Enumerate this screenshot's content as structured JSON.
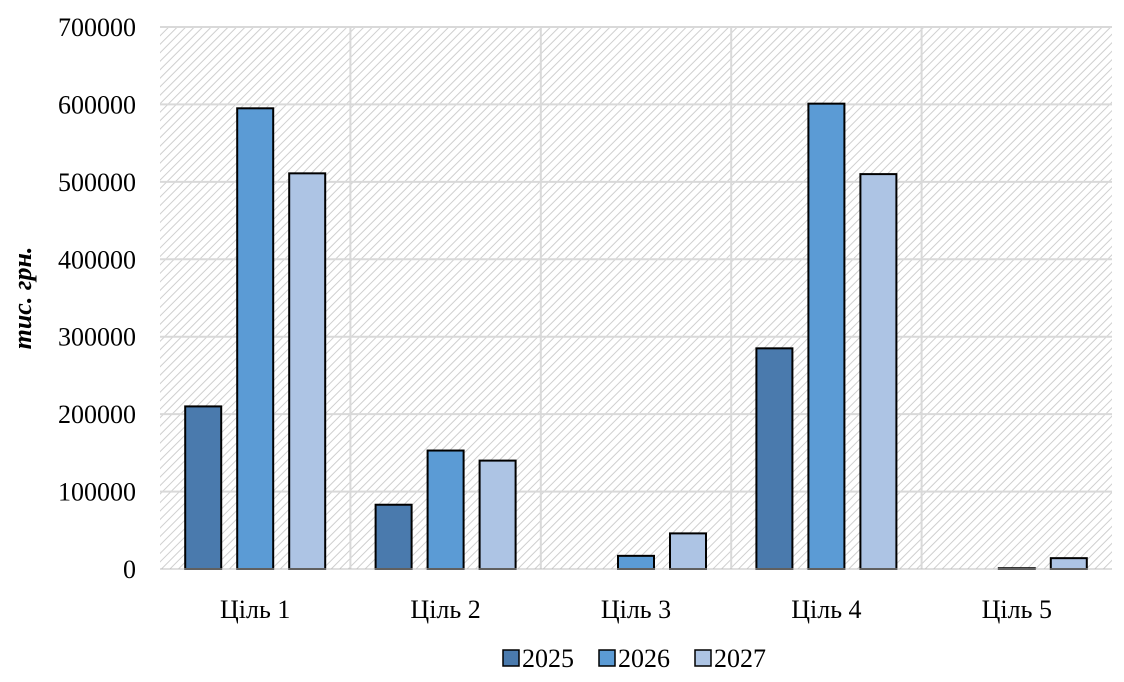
{
  "chart_data": {
    "type": "bar",
    "title": "",
    "xlabel": "",
    "ylabel": "тис. грн.",
    "categories": [
      "Ціль 1",
      "Ціль 2",
      "Ціль 3",
      "Ціль 4",
      "Ціль 5"
    ],
    "series": [
      {
        "name": "2025",
        "color": "#4a7aad",
        "values": [
          210000,
          83000,
          0,
          285000,
          0
        ]
      },
      {
        "name": "2026",
        "color": "#5b9bd5",
        "values": [
          595000,
          153000,
          17000,
          601000,
          1000
        ]
      },
      {
        "name": "2027",
        "color": "#adc4e4",
        "values": [
          511000,
          140000,
          46000,
          510000,
          14000
        ]
      }
    ],
    "ylim": [
      0,
      700000
    ],
    "yticks": [
      "0",
      "100000",
      "200000",
      "300000",
      "400000",
      "500000",
      "600000",
      "700000"
    ],
    "grid": true,
    "legend_position": "bottom"
  }
}
